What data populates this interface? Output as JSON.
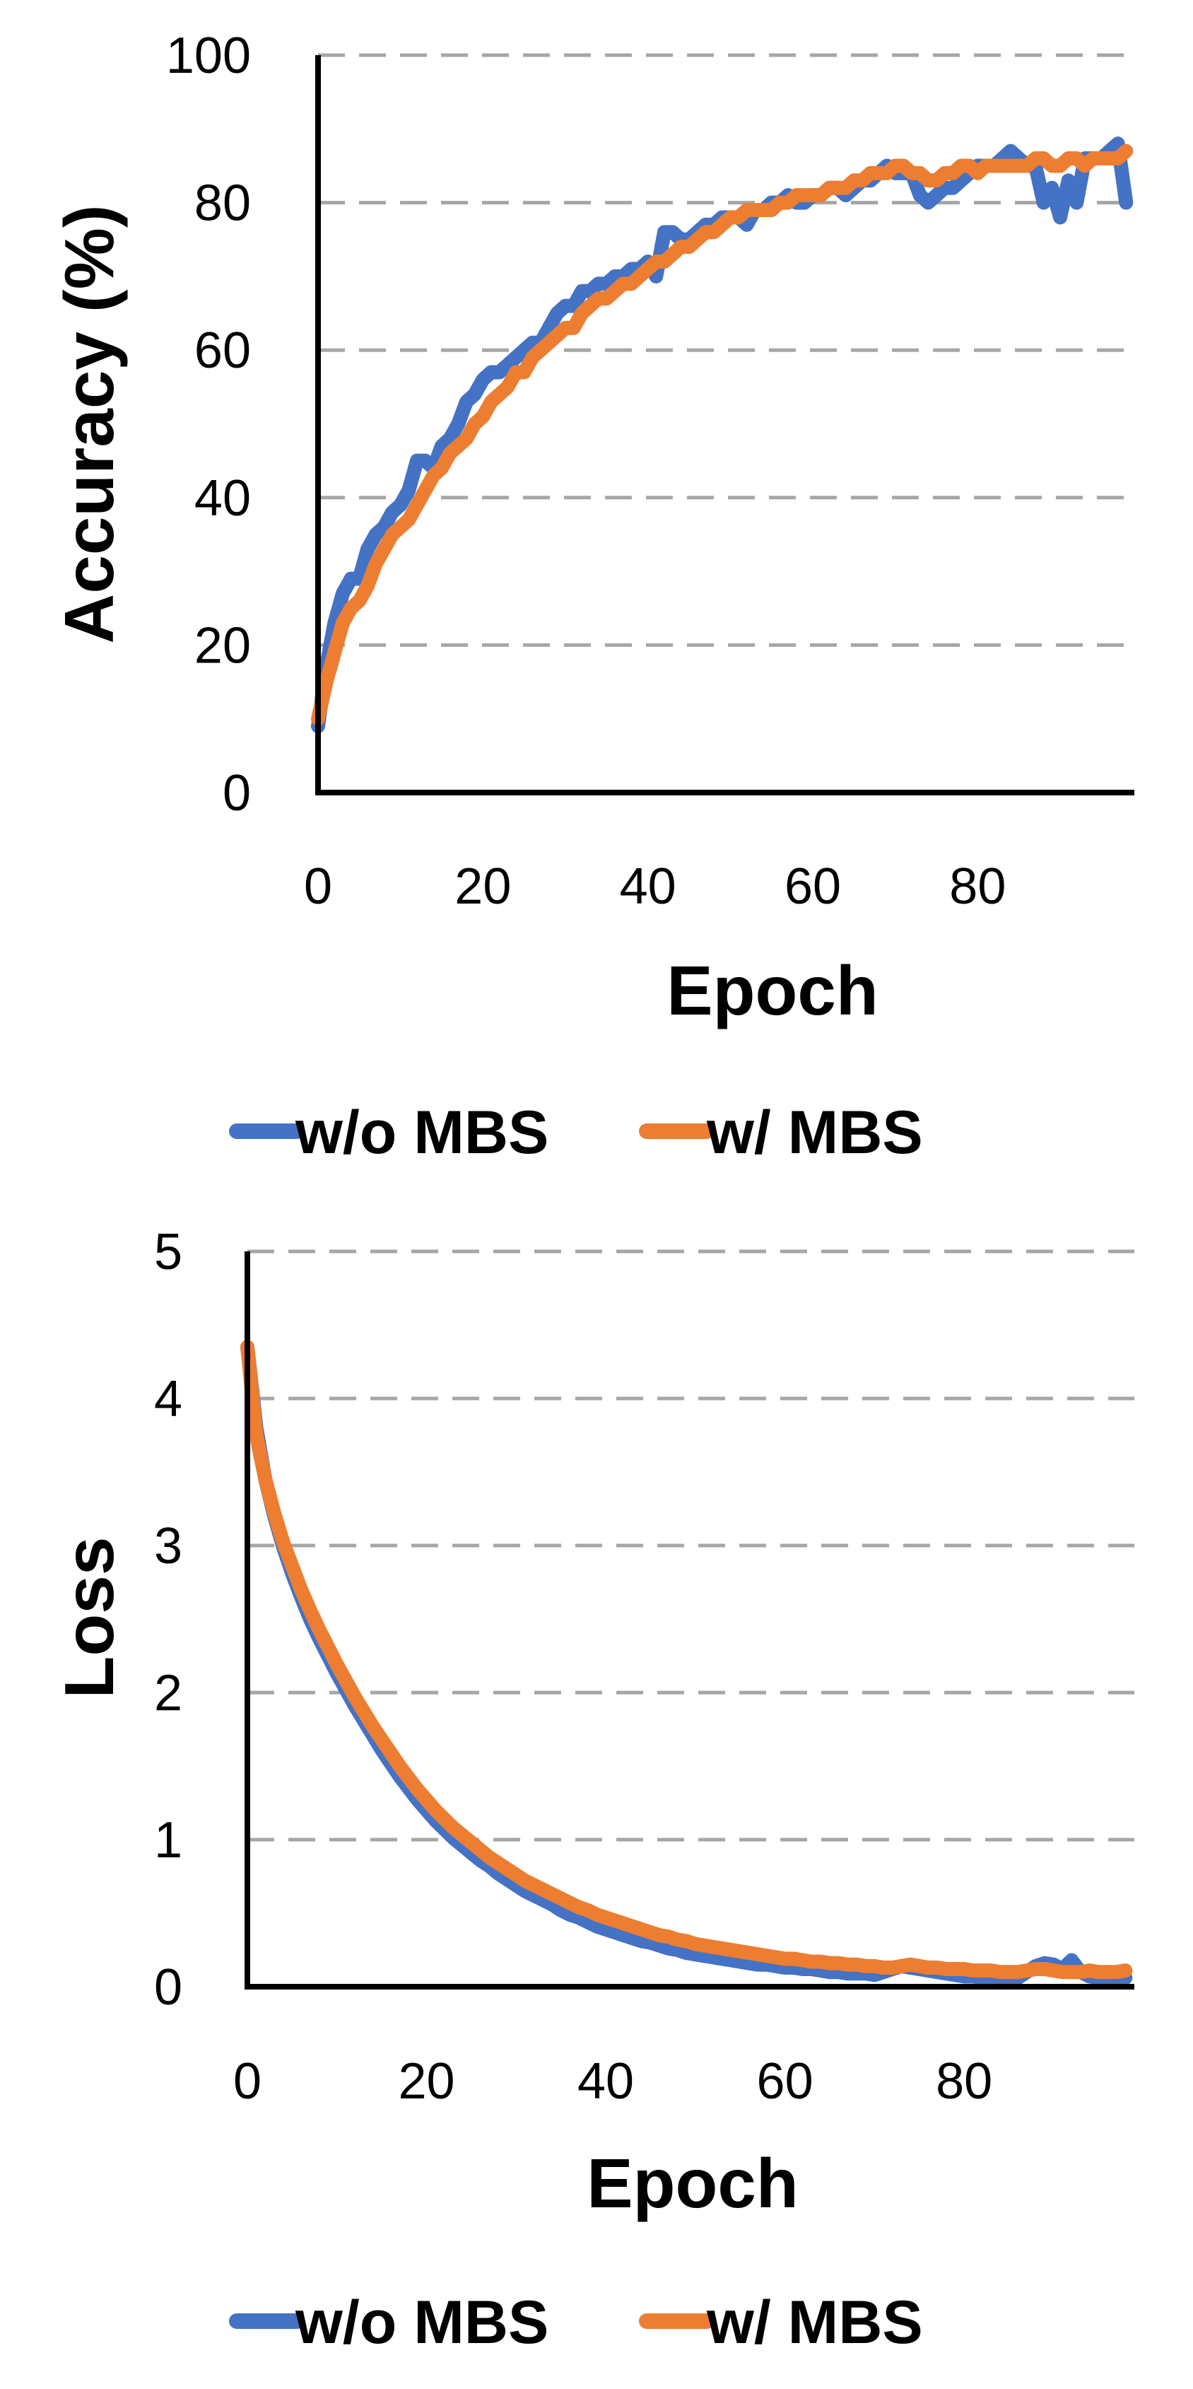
{
  "chart_data": [
    {
      "type": "line",
      "xlabel": "Epoch",
      "ylabel": "Accuracy (%)",
      "xlim": [
        0,
        99
      ],
      "ylim": [
        0,
        100
      ],
      "xticks": [
        "0",
        "20",
        "40",
        "60",
        "80"
      ],
      "yticks": [
        "0",
        "20",
        "40",
        "60",
        "80",
        "100"
      ],
      "grid": "horizontal-dashed",
      "legend": "bottom",
      "series": [
        {
          "name": "w/o MBS",
          "color": "#4472C4",
          "values": [
            9,
            17,
            23,
            27,
            29,
            29,
            33,
            35,
            36,
            38,
            39,
            41,
            45,
            45,
            44,
            47,
            48,
            50,
            53,
            54,
            56,
            57,
            57,
            58,
            59,
            60,
            61,
            61,
            63,
            65,
            66,
            66,
            68,
            68,
            69,
            69,
            70,
            70,
            71,
            71,
            72,
            70,
            76,
            76,
            75,
            75,
            76,
            77,
            77,
            78,
            78,
            78,
            77,
            79,
            79,
            80,
            80,
            81,
            80,
            80,
            81,
            81,
            82,
            82,
            81,
            82,
            83,
            83,
            84,
            85,
            84,
            84,
            84,
            81,
            80,
            81,
            82,
            82,
            83,
            84,
            85,
            85,
            85,
            86,
            87,
            86,
            85,
            85,
            80,
            82,
            78,
            83,
            80,
            86,
            86,
            86,
            87,
            88,
            80
          ]
        },
        {
          "name": "w/ MBS",
          "color": "#ED7D31",
          "values": [
            10,
            15,
            19,
            23,
            25,
            26,
            28,
            31,
            33,
            35,
            36,
            37,
            39,
            41,
            43,
            44,
            46,
            47,
            48,
            50,
            51,
            53,
            54,
            55,
            57,
            57,
            59,
            60,
            61,
            62,
            63,
            63,
            65,
            66,
            67,
            67,
            68,
            69,
            69,
            70,
            71,
            72,
            72,
            73,
            74,
            74,
            75,
            76,
            76,
            77,
            78,
            78,
            79,
            79,
            79,
            79,
            80,
            80,
            81,
            81,
            81,
            81,
            82,
            82,
            82,
            83,
            83,
            84,
            84,
            84,
            85,
            85,
            84,
            84,
            83,
            83,
            84,
            84,
            85,
            85,
            84,
            85,
            85,
            85,
            85,
            85,
            85,
            86,
            86,
            85,
            85,
            86,
            86,
            85,
            86,
            86,
            86,
            86,
            87
          ]
        }
      ]
    },
    {
      "type": "line",
      "xlabel": "Epoch",
      "ylabel": "Loss",
      "xlim": [
        0,
        99
      ],
      "ylim": [
        0,
        5
      ],
      "xticks": [
        "0",
        "20",
        "40",
        "60",
        "80"
      ],
      "yticks": [
        "0",
        "1",
        "2",
        "3",
        "4",
        "5"
      ],
      "grid": "horizontal-dashed",
      "legend": "bottom",
      "series": [
        {
          "name": "w/o MBS",
          "color": "#4472C4",
          "values": [
            4.35,
            3.8,
            3.45,
            3.2,
            2.99,
            2.81,
            2.65,
            2.5,
            2.37,
            2.25,
            2.13,
            2.02,
            1.91,
            1.81,
            1.71,
            1.61,
            1.52,
            1.43,
            1.35,
            1.27,
            1.2,
            1.13,
            1.07,
            1.01,
            0.96,
            0.91,
            0.86,
            0.82,
            0.77,
            0.73,
            0.69,
            0.65,
            0.62,
            0.59,
            0.56,
            0.52,
            0.49,
            0.47,
            0.44,
            0.41,
            0.39,
            0.37,
            0.35,
            0.33,
            0.31,
            0.3,
            0.28,
            0.26,
            0.25,
            0.23,
            0.22,
            0.21,
            0.2,
            0.19,
            0.18,
            0.17,
            0.16,
            0.15,
            0.15,
            0.14,
            0.13,
            0.13,
            0.12,
            0.12,
            0.11,
            0.1,
            0.1,
            0.09,
            0.09,
            0.09,
            0.08,
            0.1,
            0.12,
            0.14,
            0.13,
            0.12,
            0.11,
            0.1,
            0.09,
            0.08,
            0.07,
            0.07,
            0.06,
            0.06,
            0.05,
            0.05,
            0.06,
            0.1,
            0.14,
            0.16,
            0.15,
            0.12,
            0.18,
            0.1,
            0.07,
            0.06,
            0.05,
            0.05,
            0.06
          ]
        },
        {
          "name": "w/ MBS",
          "color": "#ED7D31",
          "values": [
            4.35,
            3.75,
            3.45,
            3.22,
            3.02,
            2.86,
            2.7,
            2.56,
            2.43,
            2.31,
            2.19,
            2.08,
            1.97,
            1.87,
            1.77,
            1.68,
            1.59,
            1.5,
            1.42,
            1.34,
            1.27,
            1.2,
            1.14,
            1.08,
            1.03,
            0.98,
            0.93,
            0.88,
            0.84,
            0.8,
            0.76,
            0.72,
            0.69,
            0.66,
            0.63,
            0.6,
            0.57,
            0.54,
            0.52,
            0.49,
            0.47,
            0.45,
            0.43,
            0.41,
            0.39,
            0.37,
            0.35,
            0.34,
            0.32,
            0.31,
            0.29,
            0.28,
            0.27,
            0.26,
            0.25,
            0.24,
            0.23,
            0.22,
            0.21,
            0.2,
            0.19,
            0.19,
            0.18,
            0.17,
            0.17,
            0.16,
            0.16,
            0.15,
            0.15,
            0.14,
            0.14,
            0.13,
            0.13,
            0.14,
            0.15,
            0.14,
            0.13,
            0.13,
            0.12,
            0.12,
            0.12,
            0.11,
            0.11,
            0.11,
            0.1,
            0.1,
            0.1,
            0.11,
            0.12,
            0.12,
            0.11,
            0.1,
            0.1,
            0.1,
            0.11,
            0.1,
            0.1,
            0.1,
            0.11
          ]
        }
      ]
    }
  ]
}
